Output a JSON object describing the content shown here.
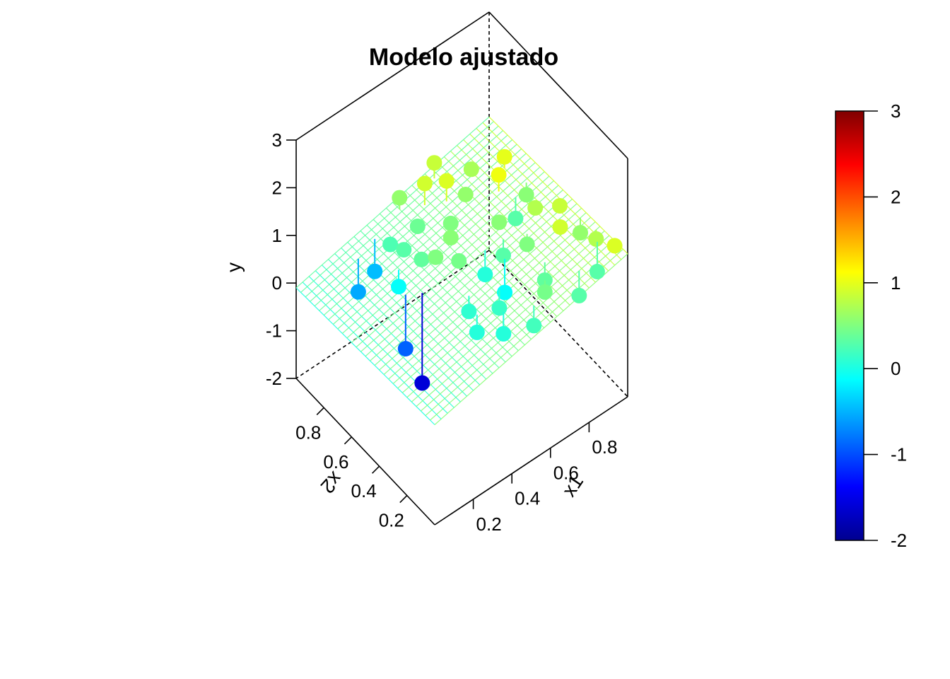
{
  "chart_data": {
    "type": "scatter3d",
    "title": "Modelo ajustado",
    "xlabel": "x1",
    "ylabel": "x2",
    "zlabel": "y",
    "xlim": [
      0,
      1
    ],
    "ylim": [
      0,
      1
    ],
    "zlim": [
      -2,
      3
    ],
    "x_ticks": [
      "0.2",
      "0.4",
      "0.6",
      "0.8"
    ],
    "y_ticks": [
      "0.2",
      "0.4",
      "0.6",
      "0.8"
    ],
    "z_ticks": [
      "-2",
      "-1",
      "0",
      "1",
      "2",
      "3"
    ],
    "colorbar": {
      "range": [
        -2,
        3
      ],
      "ticks": [
        "-2",
        "-1",
        "0",
        "1",
        "2",
        "3"
      ],
      "palette": [
        "#00008f",
        "#0000ff",
        "#0080ff",
        "#00ffff",
        "#80ff80",
        "#ffff00",
        "#ff8000",
        "#ff0000",
        "#800000"
      ]
    },
    "fitted_plane": {
      "formula": "y = b0 + b1*x1 + b2*x2",
      "b0": 0.1,
      "b1": 0.9,
      "b2": -0.2
    },
    "points": [
      {
        "x1": 0.35,
        "x2": 0.92,
        "y": -0.45
      },
      {
        "x1": 0.38,
        "x2": 0.85,
        "y": 0.25
      },
      {
        "x1": 0.33,
        "x2": 0.72,
        "y": -0.1
      },
      {
        "x1": 0.42,
        "x2": 0.68,
        "y": 0.35
      },
      {
        "x1": 0.45,
        "x2": 0.62,
        "y": 0.5
      },
      {
        "x1": 0.28,
        "x2": 0.6,
        "y": -0.9
      },
      {
        "x1": 0.33,
        "x2": 0.55,
        "y": -1.6
      },
      {
        "x1": 0.5,
        "x2": 0.82,
        "y": 0.4
      },
      {
        "x1": 0.52,
        "x2": 0.55,
        "y": 0.45
      },
      {
        "x1": 0.55,
        "x2": 0.65,
        "y": 0.55
      },
      {
        "x1": 0.6,
        "x2": 0.72,
        "y": 0.5
      },
      {
        "x1": 0.62,
        "x2": 0.5,
        "y": 0.05
      },
      {
        "x1": 0.65,
        "x2": 0.4,
        "y": -0.1
      },
      {
        "x1": 0.58,
        "x2": 0.88,
        "y": 0.9
      },
      {
        "x1": 0.65,
        "x2": 0.82,
        "y": 0.95
      },
      {
        "x1": 0.72,
        "x2": 0.78,
        "y": 0.6
      },
      {
        "x1": 0.75,
        "x2": 0.58,
        "y": 0.55
      },
      {
        "x1": 0.7,
        "x2": 0.48,
        "y": 0.3
      },
      {
        "x1": 0.78,
        "x2": 0.42,
        "y": 0.5
      },
      {
        "x1": 0.8,
        "x2": 0.85,
        "y": 0.7
      },
      {
        "x1": 0.82,
        "x2": 0.68,
        "y": 1.05
      },
      {
        "x1": 0.85,
        "x2": 0.6,
        "y": 0.3
      },
      {
        "x1": 0.88,
        "x2": 0.5,
        "y": 0.75
      },
      {
        "x1": 0.9,
        "x2": 0.75,
        "y": 1.0
      },
      {
        "x1": 0.92,
        "x2": 0.62,
        "y": 0.55
      },
      {
        "x1": 0.95,
        "x2": 0.42,
        "y": 0.85
      },
      {
        "x1": 0.97,
        "x2": 0.3,
        "y": 0.6
      },
      {
        "x1": 0.98,
        "x2": 0.2,
        "y": 0.75
      },
      {
        "x1": 0.95,
        "x2": 0.15,
        "y": 0.3
      },
      {
        "x1": 0.99,
        "x2": 0.08,
        "y": 0.95
      },
      {
        "x1": 0.75,
        "x2": 0.25,
        "y": 0.35
      },
      {
        "x1": 0.7,
        "x2": 0.18,
        "y": 0.45
      },
      {
        "x1": 0.55,
        "x2": 0.3,
        "y": 0.15
      },
      {
        "x1": 0.5,
        "x2": 0.2,
        "y": 0.05
      },
      {
        "x1": 0.45,
        "x2": 0.38,
        "y": 0.1
      },
      {
        "x1": 0.42,
        "x2": 0.28,
        "y": 0.05
      },
      {
        "x1": 0.6,
        "x2": 0.12,
        "y": 0.2
      },
      {
        "x1": 0.82,
        "x2": 0.1,
        "y": 0.3
      },
      {
        "x1": 0.88,
        "x2": 0.32,
        "y": 0.9
      },
      {
        "x1": 0.4,
        "x2": 0.78,
        "y": 0.3
      },
      {
        "x1": 0.5,
        "x2": 0.95,
        "y": 0.6
      },
      {
        "x1": 0.68,
        "x2": 0.95,
        "y": 0.85
      },
      {
        "x1": 0.25,
        "x2": 0.9,
        "y": -0.55
      }
    ]
  }
}
